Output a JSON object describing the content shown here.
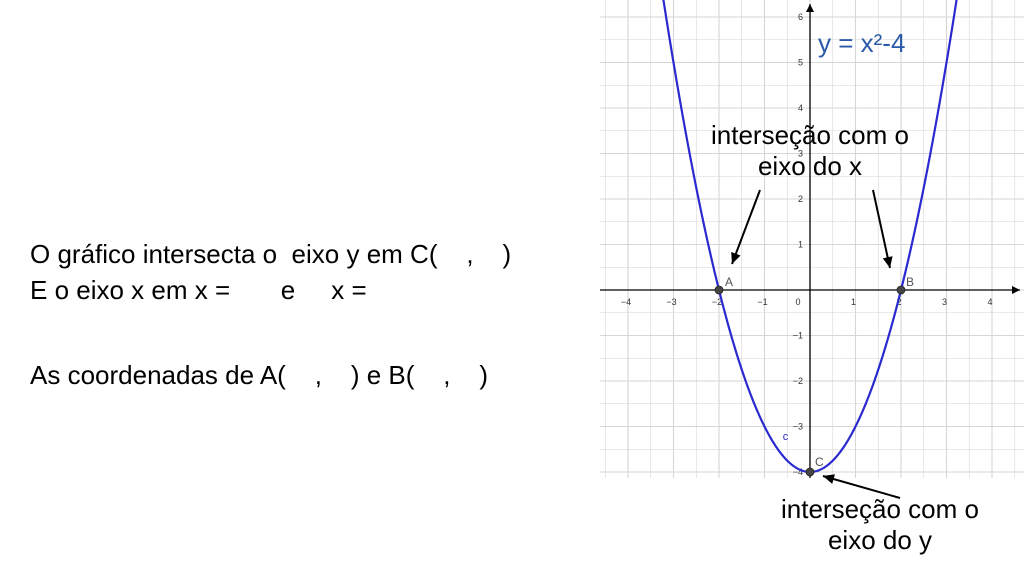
{
  "text": {
    "line1": "O gráfico intersecta o  eixo y em C(    ,    )",
    "line2": "E o eixo x em x =       e     x =",
    "line3": "As coordenadas de A(    ,    ) e B(    ,    )"
  },
  "annotations": {
    "x_intersect_1": "interseção com o",
    "x_intersect_2": "eixo do x",
    "y_intersect_1": "interseção com o",
    "y_intersect_2": "eixo do y"
  },
  "colors": {
    "curve": "#2a2ad0",
    "equation": "#2a5aa8",
    "grid": "#d6d6d6",
    "axis": "#000000",
    "point": "#444444",
    "point_label": "#555555",
    "curve_label": "#2a2ad0"
  },
  "chart_data": {
    "type": "line",
    "title": "y = x²-4",
    "equation_label": "y = x²-4",
    "function": "y = x^2 - 4",
    "xlim": [
      -4.5,
      5
    ],
    "ylim": [
      -4.3,
      6.5
    ],
    "x_ticks": [
      -4,
      -3,
      -2,
      -1,
      0,
      1,
      2,
      3,
      4
    ],
    "y_ticks": [
      -4,
      -3,
      -2,
      -1,
      1,
      2,
      3,
      4,
      5,
      6
    ],
    "minor_step": 0.5,
    "grid": true,
    "curve_name": "c",
    "series": [
      {
        "name": "c",
        "x": [
          -3.2,
          -3,
          -2.5,
          -2,
          -1.5,
          -1,
          -0.5,
          0,
          0.5,
          1,
          1.5,
          2,
          2.5,
          3,
          3.2
        ],
        "y": [
          6.24,
          5,
          2.25,
          0,
          -1.75,
          -3,
          -3.75,
          -4,
          -3.75,
          -3,
          -1.75,
          0,
          2.25,
          5,
          6.24
        ]
      }
    ],
    "points": [
      {
        "label": "A",
        "x": -2,
        "y": 0
      },
      {
        "label": "B",
        "x": 2,
        "y": 0
      },
      {
        "label": "C",
        "x": 0,
        "y": -4
      }
    ]
  }
}
